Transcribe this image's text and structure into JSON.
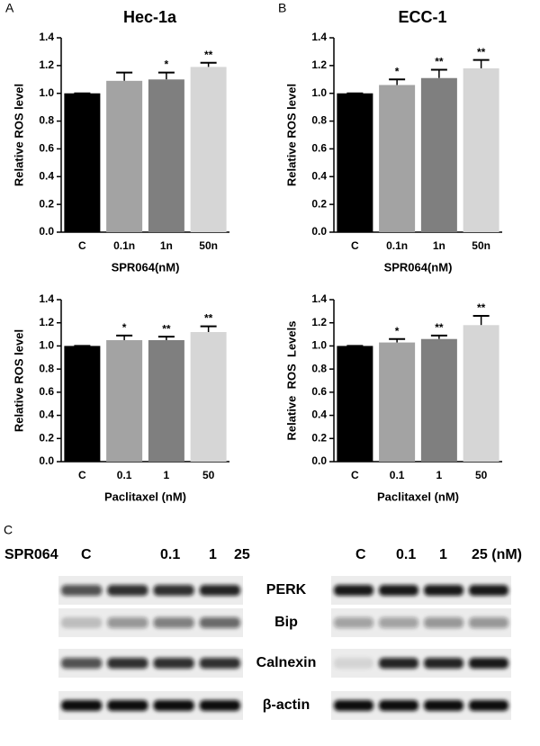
{
  "chart_data": [
    {
      "type": "bar",
      "panel_label": "A",
      "title": "Hec-1a",
      "y_label": "Relative ROS level",
      "x_label": "SPR064(nM)",
      "categories": [
        "C",
        "0.1n",
        "1n",
        "50n"
      ],
      "values": [
        1.0,
        1.09,
        1.1,
        1.19
      ],
      "errors": [
        0,
        0.06,
        0.05,
        0.03
      ],
      "annotations": [
        null,
        null,
        "*",
        "**"
      ],
      "colors": [
        "#000000",
        "#a3a3a3",
        "#7f7f7f",
        "#d6d6d6"
      ],
      "ylim": [
        0,
        1.4
      ],
      "yticks": [
        {
          "value": 0,
          "label": "0.0"
        },
        0.2,
        0.4,
        0.6,
        0.8,
        {
          "value": 1,
          "label": "1.0"
        },
        1.2,
        1.4
      ]
    },
    {
      "type": "bar",
      "panel_label": "B",
      "title": "ECC-1",
      "y_label": "Relative ROS level",
      "x_label": "SPR064(nM)",
      "categories": [
        "C",
        "0.1n",
        "1n",
        "50n"
      ],
      "values": [
        1.0,
        1.06,
        1.11,
        1.18
      ],
      "errors": [
        0,
        0.04,
        0.06,
        0.06
      ],
      "annotations": [
        null,
        "*",
        "**",
        "**"
      ],
      "colors": [
        "#000000",
        "#a3a3a3",
        "#7f7f7f",
        "#d6d6d6"
      ],
      "ylim": [
        0,
        1.4
      ],
      "yticks": [
        {
          "value": 0,
          "label": "0.0"
        },
        0.2,
        0.4,
        0.6,
        0.8,
        {
          "value": 1,
          "label": "1.0"
        },
        1.2,
        1.4
      ]
    },
    {
      "type": "bar",
      "y_label": "Relative ROS level",
      "x_label": "Paclitaxel (nM)",
      "categories": [
        "C",
        "0.1",
        "1",
        "50"
      ],
      "values": [
        1.0,
        1.05,
        1.05,
        1.12
      ],
      "errors": [
        0,
        0.04,
        0.03,
        0.05
      ],
      "annotations": [
        null,
        "*",
        "**",
        "**"
      ],
      "colors": [
        "#000000",
        "#a3a3a3",
        "#7f7f7f",
        "#d6d6d6"
      ],
      "ylim": [
        0,
        1.4
      ],
      "yticks": [
        {
          "value": 0,
          "label": "0.0"
        },
        0.2,
        0.4,
        0.6,
        0.8,
        {
          "value": 1,
          "label": "1.0"
        },
        1.2,
        1.4
      ]
    },
    {
      "type": "bar",
      "y_label": "Relative  ROS  Levels",
      "x_label": "Paclitaxel (nM)",
      "categories": [
        "C",
        "0.1",
        "1",
        "50"
      ],
      "values": [
        1.0,
        1.03,
        1.06,
        1.18
      ],
      "errors": [
        0,
        0.03,
        0.03,
        0.08
      ],
      "annotations": [
        null,
        "*",
        "**",
        "**"
      ],
      "colors": [
        "#000000",
        "#a3a3a3",
        "#7f7f7f",
        "#d6d6d6"
      ],
      "ylim": [
        0,
        1.4
      ],
      "yticks": [
        {
          "value": 0,
          "label": "0.0"
        },
        0.2,
        0.4,
        0.6,
        0.8,
        {
          "value": 1,
          "label": "1.0"
        },
        1.2,
        1.4
      ]
    }
  ],
  "blot": {
    "panel_label": "C",
    "left_header": [
      "SPR064",
      "C",
      "0.1",
      "1",
      "25"
    ],
    "right_header": [
      "C",
      "0.1",
      "1",
      "25 (nM)"
    ],
    "rows": [
      "PERK",
      "Bip",
      "Calnexin",
      "β-actin"
    ]
  }
}
